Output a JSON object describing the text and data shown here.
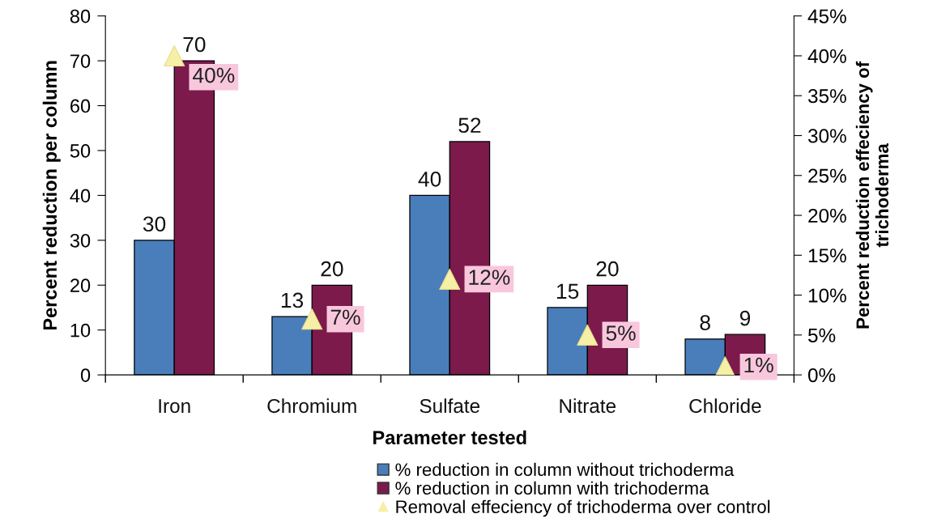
{
  "chart_data": {
    "type": "bar",
    "categories": [
      "Iron",
      "Chromium",
      "Sulfate",
      "Nitrate",
      "Chloride"
    ],
    "series": [
      {
        "name": "% reduction in column without trichoderma",
        "color": "#4a7ebb",
        "values": [
          30,
          13,
          40,
          15,
          8
        ]
      },
      {
        "name": "% reduction in column with trichoderma",
        "color": "#7c1a4c",
        "values": [
          70,
          20,
          52,
          20,
          9
        ]
      },
      {
        "name": "Removal effeciency of trichoderma over control",
        "type": "scatter",
        "axis": "y2",
        "marker": "triangle",
        "color": "#f6f0a6",
        "values": [
          40,
          7,
          12,
          5,
          1
        ],
        "value_labels": [
          "40%",
          "7%",
          "12%",
          "5%",
          "1%"
        ]
      }
    ],
    "xlabel": "Parameter tested",
    "ylabel": "Percent reduction per column",
    "y2label": "Percent reduction effeciency of\ntrichoderma",
    "ylim": [
      0,
      80
    ],
    "yticks": [
      0,
      10,
      20,
      30,
      40,
      50,
      60,
      70,
      80
    ],
    "y2lim": [
      0,
      45
    ],
    "y2ticks": [
      {
        "value": 0,
        "label": "0%"
      },
      {
        "value": 5,
        "label": "5%"
      },
      {
        "value": 10,
        "label": "10%"
      },
      {
        "value": 15,
        "label": "15%"
      },
      {
        "value": 20,
        "label": "20%"
      },
      {
        "value": 25,
        "label": "25%"
      },
      {
        "value": 30,
        "label": "30%"
      },
      {
        "value": 35,
        "label": "35%"
      },
      {
        "value": 40,
        "label": "40%"
      },
      {
        "value": 45,
        "label": "45%"
      }
    ],
    "data_labels": true,
    "legend": "bottom"
  }
}
